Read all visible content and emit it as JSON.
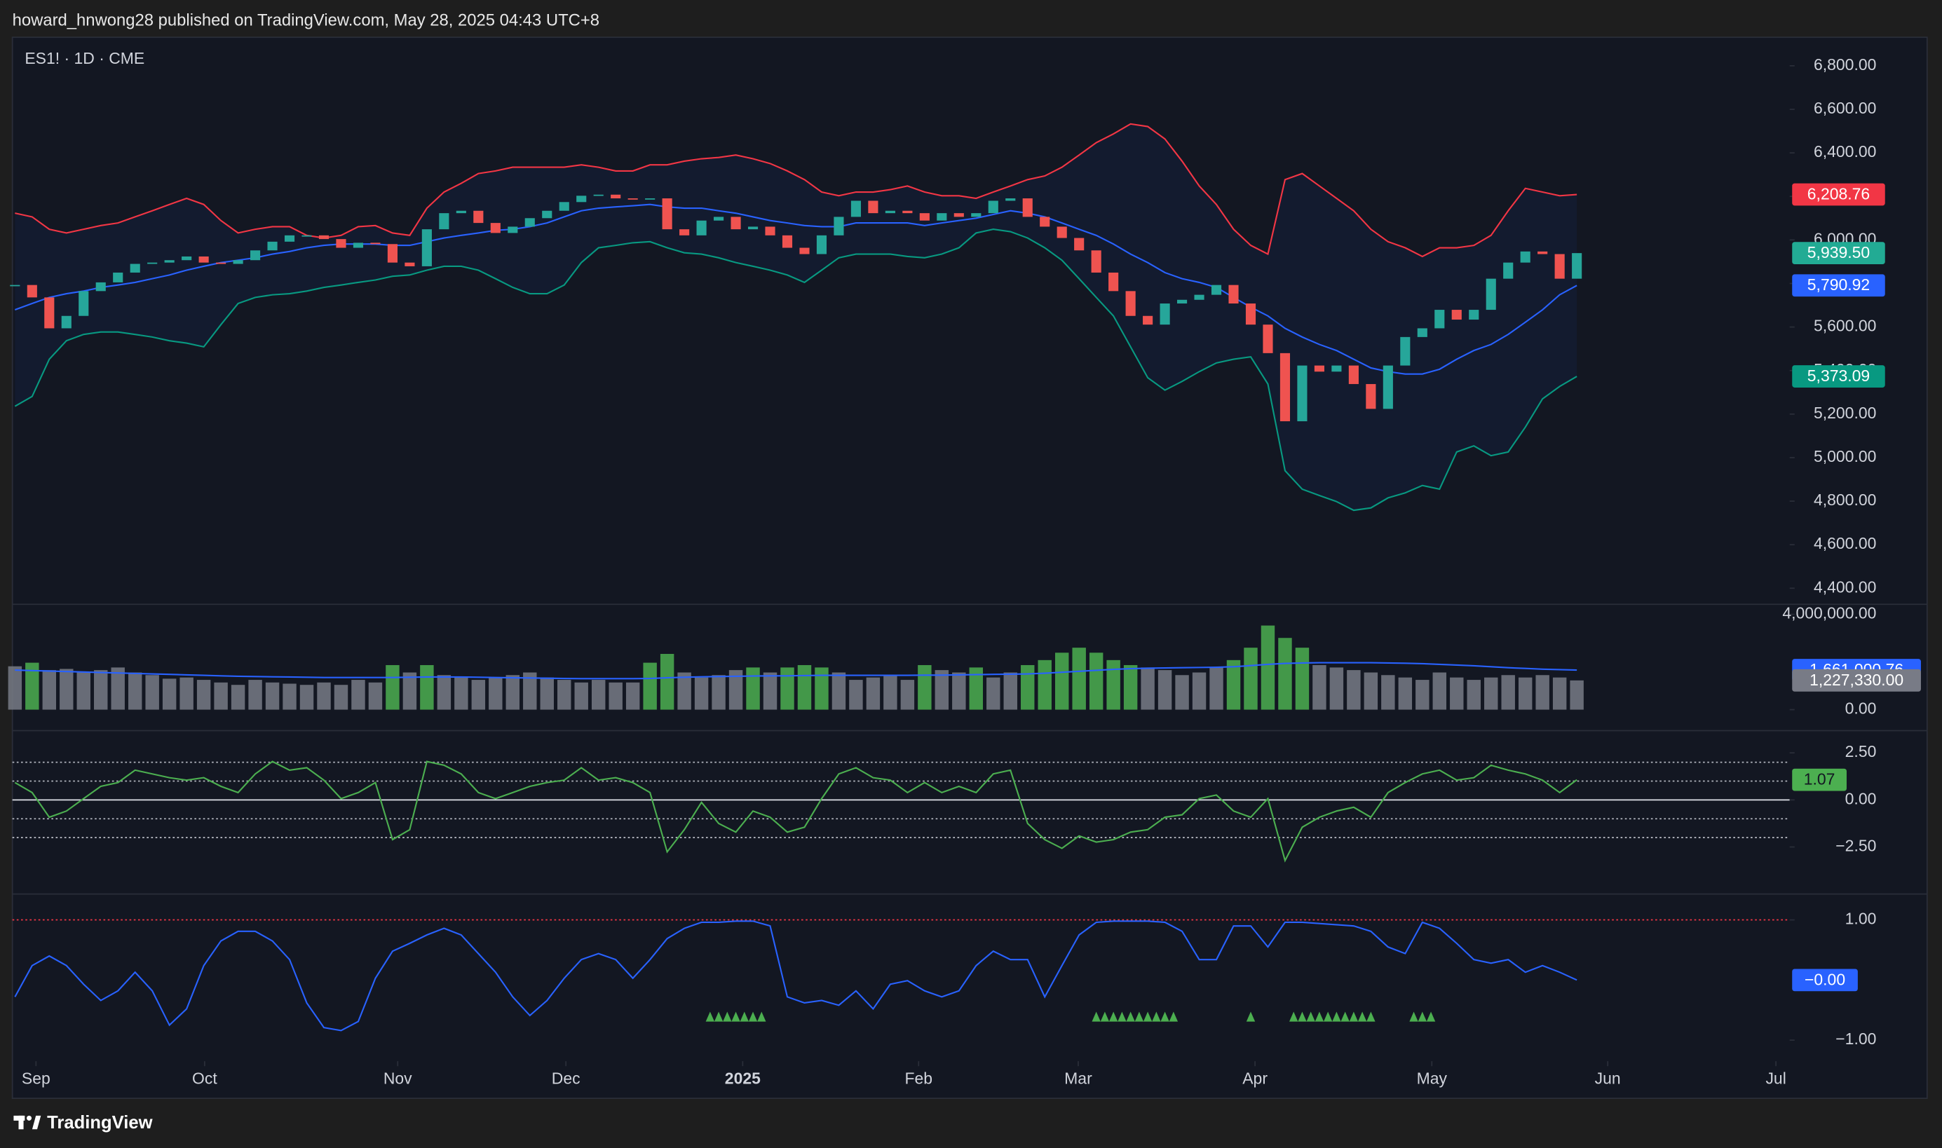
{
  "header": {
    "text": "howard_hnwong28 published on TradingView.com, May 28, 2025 04:43 UTC+8"
  },
  "footer": {
    "brand": "TradingView"
  },
  "chart_data": [
    {
      "type": "candlestick",
      "title": "ES1! · 1D · CME",
      "x": [
        0,
        2,
        4,
        6,
        8,
        10,
        12,
        14,
        16,
        18,
        20,
        22,
        24,
        26,
        28,
        30,
        32,
        34,
        36,
        38,
        40,
        42,
        44,
        46,
        48,
        50,
        52,
        54,
        56,
        58,
        60,
        62,
        64,
        66,
        68,
        70,
        72,
        74,
        76,
        78,
        80,
        82,
        84,
        86,
        88,
        90,
        92,
        94,
        96,
        98,
        100,
        102,
        104,
        106,
        108,
        110,
        112,
        114,
        116,
        118,
        120,
        122,
        124,
        126,
        128,
        130,
        132,
        134,
        136,
        138,
        140,
        142,
        144,
        146,
        148,
        150,
        152,
        154,
        156,
        158,
        160,
        162,
        164,
        166,
        168,
        170,
        172,
        174,
        176,
        178,
        180,
        182
      ],
      "xlim": [
        -0.3,
        206.8
      ],
      "values": [
        5793,
        5736,
        5594,
        5651,
        5765,
        5805,
        5850,
        5890,
        5896,
        5907,
        5924,
        5896,
        5890,
        5907,
        5952,
        5992,
        6021,
        6021,
        6004,
        5964,
        5987,
        5981,
        5896,
        5879,
        6049,
        6123,
        6134,
        6078,
        6032,
        6061,
        6100,
        6134,
        6174,
        6203,
        6208,
        6191,
        6186,
        6191,
        6049,
        6021,
        6089,
        6106,
        6049,
        6061,
        6021,
        5964,
        5935,
        6021,
        6106,
        6180,
        6123,
        6134,
        6123,
        6089,
        6123,
        6106,
        6123,
        6180,
        6191,
        6106,
        6061,
        6009,
        5952,
        5850,
        5765,
        5651,
        5611,
        5708,
        5725,
        5748,
        5793,
        5708,
        5611,
        5480,
        5167,
        5423,
        5395,
        5423,
        5338,
        5224,
        5423,
        5554,
        5594,
        5679,
        5634,
        5679,
        5822,
        5896,
        5947,
        5935,
        5822,
        5939.5
      ],
      "last_label": "5,939.50",
      "up_color": "#26a69a",
      "down_color": "#ef5350",
      "tag_up_color": "#22ab94",
      "bands": [
        {
          "values": [
            6123,
            6106,
            6049,
            6032,
            6049,
            6066,
            6078,
            6106,
            6134,
            6163,
            6191,
            6163,
            6089,
            6032,
            6049,
            6061,
            6061,
            6021,
            6009,
            6021,
            6061,
            6066,
            6032,
            6021,
            6146,
            6220,
            6260,
            6305,
            6317,
            6334,
            6334,
            6334,
            6334,
            6345,
            6334,
            6317,
            6317,
            6345,
            6345,
            6362,
            6373,
            6379,
            6390,
            6373,
            6351,
            6317,
            6277,
            6220,
            6203,
            6220,
            6220,
            6231,
            6248,
            6220,
            6203,
            6203,
            6191,
            6220,
            6248,
            6277,
            6294,
            6334,
            6390,
            6447,
            6487,
            6533,
            6521,
            6464,
            6362,
            6248,
            6163,
            6049,
            5975,
            5935,
            6277,
            6305,
            6248,
            6191,
            6134,
            6049,
            5992,
            5964,
            5924,
            5964,
            5964,
            5975,
            6021,
            6134,
            6237,
            6220,
            6203,
            6208.76
          ],
          "color": "#f23645",
          "last_label": "6,208.76"
        },
        {
          "values": [
            5679,
            5708,
            5736,
            5753,
            5765,
            5782,
            5793,
            5805,
            5822,
            5839,
            5861,
            5879,
            5896,
            5907,
            5918,
            5935,
            5947,
            5964,
            5975,
            5981,
            5981,
            5981,
            5975,
            5975,
            5992,
            6009,
            6021,
            6032,
            6044,
            6049,
            6061,
            6078,
            6106,
            6134,
            6146,
            6152,
            6157,
            6163,
            6152,
            6146,
            6146,
            6134,
            6123,
            6106,
            6089,
            6078,
            6066,
            6061,
            6061,
            6078,
            6078,
            6078,
            6078,
            6066,
            6078,
            6089,
            6100,
            6117,
            6134,
            6123,
            6106,
            6078,
            6049,
            6021,
            5981,
            5935,
            5896,
            5850,
            5822,
            5805,
            5782,
            5736,
            5691,
            5651,
            5594,
            5554,
            5520,
            5492,
            5452,
            5412,
            5395,
            5384,
            5384,
            5406,
            5452,
            5492,
            5520,
            5566,
            5622,
            5679,
            5748,
            5790.92
          ],
          "color": "#2962ff",
          "last_label": "5,790.92"
        },
        {
          "values": [
            5236,
            5281,
            5452,
            5537,
            5566,
            5577,
            5577,
            5566,
            5554,
            5537,
            5526,
            5509,
            5611,
            5708,
            5736,
            5748,
            5753,
            5765,
            5782,
            5793,
            5805,
            5816,
            5833,
            5839,
            5861,
            5879,
            5879,
            5861,
            5822,
            5782,
            5753,
            5753,
            5793,
            5896,
            5964,
            5975,
            5987,
            5992,
            5964,
            5941,
            5935,
            5918,
            5896,
            5879,
            5861,
            5839,
            5805,
            5861,
            5918,
            5935,
            5935,
            5935,
            5924,
            5918,
            5935,
            5964,
            6032,
            6049,
            6038,
            6009,
            5964,
            5907,
            5822,
            5736,
            5651,
            5509,
            5367,
            5310,
            5350,
            5395,
            5435,
            5452,
            5463,
            5338,
            4940,
            4855,
            4826,
            4798,
            4758,
            4769,
            4815,
            4838,
            4872,
            4855,
            5026,
            5054,
            5009,
            5026,
            5140,
            5270,
            5327,
            5373.09
          ],
          "color": "#089981",
          "last_label": "5,373.09"
        }
      ],
      "band_fill": "#2962ff",
      "ylim": [
        4326,
        6931
      ],
      "yticks": [
        {
          "value": 4400,
          "label": "4,400.00"
        },
        {
          "value": 4600,
          "label": "4,600.00"
        },
        {
          "value": 4800,
          "label": "4,800.00"
        },
        {
          "value": 5000,
          "label": "5,000.00"
        },
        {
          "value": 5200,
          "label": "5,200.00"
        },
        {
          "value": 5400,
          "label": "5,400.00"
        },
        {
          "value": 5600,
          "label": "5,600.00"
        },
        {
          "value": 5800,
          "label": "5,800.00"
        },
        {
          "value": 6000,
          "label": "6,000.00"
        },
        {
          "value": 6200,
          "label": "6,200.00"
        },
        {
          "value": 6400,
          "label": "6,400.00"
        },
        {
          "value": 6600,
          "label": "6,600.00"
        },
        {
          "value": 6800,
          "label": "6,800.00"
        }
      ]
    },
    {
      "type": "bar",
      "values": [
        1820000,
        1970000,
        1660000,
        1710000,
        1560000,
        1660000,
        1770000,
        1560000,
        1450000,
        1300000,
        1350000,
        1250000,
        1140000,
        1040000,
        1250000,
        1140000,
        1090000,
        1040000,
        1140000,
        1040000,
        1250000,
        1140000,
        1870000,
        1560000,
        1870000,
        1450000,
        1350000,
        1250000,
        1350000,
        1450000,
        1560000,
        1350000,
        1250000,
        1140000,
        1250000,
        1140000,
        1140000,
        1970000,
        2340000,
        1560000,
        1350000,
        1450000,
        1660000,
        1770000,
        1560000,
        1770000,
        1870000,
        1770000,
        1560000,
        1250000,
        1350000,
        1450000,
        1250000,
        1870000,
        1660000,
        1560000,
        1770000,
        1350000,
        1560000,
        1870000,
        2080000,
        2390000,
        2600000,
        2390000,
        2080000,
        1870000,
        1770000,
        1660000,
        1450000,
        1560000,
        1770000,
        2080000,
        2600000,
        3530000,
        3010000,
        2600000,
        1870000,
        1770000,
        1660000,
        1560000,
        1450000,
        1350000,
        1250000,
        1560000,
        1350000,
        1250000,
        1350000,
        1450000,
        1350000,
        1450000,
        1350000,
        1227330
      ],
      "colors": [
        "#787b86",
        "#4caf50",
        "#787b86",
        "#787b86",
        "#787b86",
        "#787b86",
        "#787b86",
        "#787b86",
        "#787b86",
        "#787b86",
        "#787b86",
        "#787b86",
        "#787b86",
        "#787b86",
        "#787b86",
        "#787b86",
        "#787b86",
        "#787b86",
        "#787b86",
        "#787b86",
        "#787b86",
        "#787b86",
        "#4caf50",
        "#787b86",
        "#4caf50",
        "#787b86",
        "#787b86",
        "#787b86",
        "#787b86",
        "#787b86",
        "#787b86",
        "#787b86",
        "#787b86",
        "#787b86",
        "#787b86",
        "#787b86",
        "#787b86",
        "#4caf50",
        "#4caf50",
        "#787b86",
        "#787b86",
        "#787b86",
        "#787b86",
        "#4caf50",
        "#787b86",
        "#4caf50",
        "#4caf50",
        "#4caf50",
        "#787b86",
        "#787b86",
        "#787b86",
        "#787b86",
        "#787b86",
        "#4caf50",
        "#787b86",
        "#787b86",
        "#4caf50",
        "#787b86",
        "#787b86",
        "#4caf50",
        "#4caf50",
        "#4caf50",
        "#4caf50",
        "#4caf50",
        "#4caf50",
        "#4caf50",
        "#787b86",
        "#787b86",
        "#787b86",
        "#787b86",
        "#787b86",
        "#4caf50",
        "#4caf50",
        "#4caf50",
        "#4caf50",
        "#4caf50",
        "#787b86",
        "#787b86",
        "#787b86",
        "#787b86",
        "#787b86",
        "#787b86",
        "#787b86",
        "#787b86",
        "#787b86",
        "#787b86",
        "#787b86",
        "#787b86",
        "#787b86",
        "#787b86",
        "#787b86",
        "#787b86"
      ],
      "last_label": "1,227,330.00",
      "ma": {
        "values": [
          1660000,
          1640000,
          1620000,
          1600000,
          1580000,
          1560000,
          1540000,
          1520000,
          1500000,
          1480000,
          1460000,
          1440000,
          1420000,
          1400000,
          1390000,
          1380000,
          1370000,
          1360000,
          1350000,
          1350000,
          1350000,
          1350000,
          1350000,
          1360000,
          1370000,
          1370000,
          1370000,
          1360000,
          1350000,
          1340000,
          1330000,
          1320000,
          1310000,
          1300000,
          1300000,
          1300000,
          1300000,
          1310000,
          1340000,
          1360000,
          1380000,
          1390000,
          1400000,
          1410000,
          1420000,
          1420000,
          1430000,
          1440000,
          1440000,
          1440000,
          1440000,
          1440000,
          1440000,
          1450000,
          1450000,
          1460000,
          1470000,
          1480000,
          1490000,
          1500000,
          1530000,
          1570000,
          1610000,
          1650000,
          1690000,
          1720000,
          1740000,
          1750000,
          1760000,
          1770000,
          1780000,
          1800000,
          1850000,
          1900000,
          1940000,
          1960000,
          1970000,
          1970000,
          1970000,
          1970000,
          1960000,
          1950000,
          1930000,
          1900000,
          1870000,
          1840000,
          1800000,
          1760000,
          1730000,
          1700000,
          1680000,
          1661000.76
        ],
        "color": "#2962ff",
        "last_label": "1,661,000.76"
      },
      "ylim": [
        -880000,
        4420000
      ],
      "yticks": [
        {
          "value": 4000000,
          "label": "4,000,000.00"
        },
        {
          "value": 0,
          "label": "0.00"
        }
      ]
    },
    {
      "type": "line",
      "values": [
        0.92,
        0.39,
        -0.92,
        -0.59,
        0.07,
        0.72,
        0.92,
        1.58,
        1.38,
        1.18,
        1.05,
        1.18,
        0.72,
        0.39,
        1.38,
        2.04,
        1.58,
        1.71,
        1.05,
        0.07,
        0.39,
        0.92,
        -2.11,
        -1.58,
        2.04,
        1.84,
        1.38,
        0.39,
        0.07,
        0.39,
        0.72,
        0.92,
        1.05,
        1.71,
        1.05,
        1.18,
        0.92,
        0.39,
        -2.76,
        -1.58,
        -0.13,
        -1.25,
        -1.71,
        -0.59,
        -0.92,
        -1.71,
        -1.45,
        0.07,
        1.38,
        1.71,
        1.18,
        1.05,
        0.39,
        0.92,
        0.39,
        0.72,
        0.39,
        1.38,
        1.58,
        -1.25,
        -2.11,
        -2.57,
        -1.91,
        -2.24,
        -2.11,
        -1.71,
        -1.58,
        -0.92,
        -0.79,
        0.07,
        0.26,
        -0.59,
        -0.92,
        0.07,
        -3.22,
        -1.45,
        -0.92,
        -0.59,
        -0.39,
        -0.92,
        0.39,
        0.92,
        1.38,
        1.58,
        1.05,
        1.18,
        1.84,
        1.58,
        1.38,
        1.05,
        0.39,
        1.07
      ],
      "color": "#4caf50",
      "last_label": "1.07",
      "levels": [
        2,
        1,
        -1,
        -2
      ],
      "baseline": 0,
      "ylim": [
        -5.0,
        3.68
      ],
      "yticks": [
        {
          "value": 2.5,
          "label": "2.50"
        },
        {
          "value": 0,
          "label": "0.00"
        },
        {
          "value": -2.5,
          "label": "−2.50"
        }
      ]
    },
    {
      "type": "line",
      "values": [
        -0.28,
        0.24,
        0.4,
        0.24,
        -0.07,
        -0.34,
        -0.18,
        0.13,
        -0.18,
        -0.75,
        -0.48,
        0.24,
        0.65,
        0.81,
        0.81,
        0.65,
        0.34,
        -0.38,
        -0.79,
        -0.84,
        -0.69,
        0.03,
        0.48,
        0.61,
        0.75,
        0.86,
        0.75,
        0.44,
        0.13,
        -0.28,
        -0.59,
        -0.34,
        0.03,
        0.34,
        0.44,
        0.34,
        0.03,
        0.34,
        0.69,
        0.86,
        0.96,
        0.96,
        0.98,
        0.98,
        0.9,
        -0.28,
        -0.38,
        -0.34,
        -0.42,
        -0.18,
        -0.48,
        -0.07,
        -0.01,
        -0.18,
        -0.28,
        -0.18,
        0.24,
        0.48,
        0.34,
        0.34,
        -0.28,
        0.24,
        0.75,
        0.96,
        0.98,
        0.98,
        0.98,
        0.96,
        0.81,
        0.34,
        0.34,
        0.9,
        0.9,
        0.55,
        0.96,
        0.96,
        0.94,
        0.92,
        0.9,
        0.81,
        0.55,
        0.44,
        0.96,
        0.86,
        0.61,
        0.34,
        0.28,
        0.34,
        0.13,
        0.24,
        0.13,
        0
      ],
      "color": "#2962ff",
      "last_label": "−0.00",
      "levels": [
        1
      ],
      "level_color": "#f23645",
      "signals": [
        81,
        82,
        83,
        84,
        85,
        86,
        87,
        126,
        127,
        128,
        129,
        130,
        131,
        132,
        133,
        134,
        135,
        144,
        149,
        150,
        151,
        152,
        153,
        154,
        155,
        156,
        157,
        158,
        163,
        164,
        165
      ],
      "signal_color": "#4caf50",
      "ylim": [
        -1.35,
        1.43
      ],
      "yticks": [
        {
          "value": 1,
          "label": "1.00"
        },
        {
          "value": -1,
          "label": "−1.00"
        }
      ],
      "xticks": [
        {
          "value": 2.45,
          "label": "Sep"
        },
        {
          "value": 22.1,
          "label": "Oct"
        },
        {
          "value": 44.6,
          "label": "Nov"
        },
        {
          "value": 64.2,
          "label": "Dec"
        },
        {
          "value": 84.8,
          "label": "2025"
        },
        {
          "value": 105.3,
          "label": "Feb"
        },
        {
          "value": 123.9,
          "label": "Mar"
        },
        {
          "value": 144.5,
          "label": "Apr"
        },
        {
          "value": 165.1,
          "label": "May"
        },
        {
          "value": 185.6,
          "label": "Jun"
        },
        {
          "value": 205.2,
          "label": "Jul"
        }
      ]
    }
  ]
}
